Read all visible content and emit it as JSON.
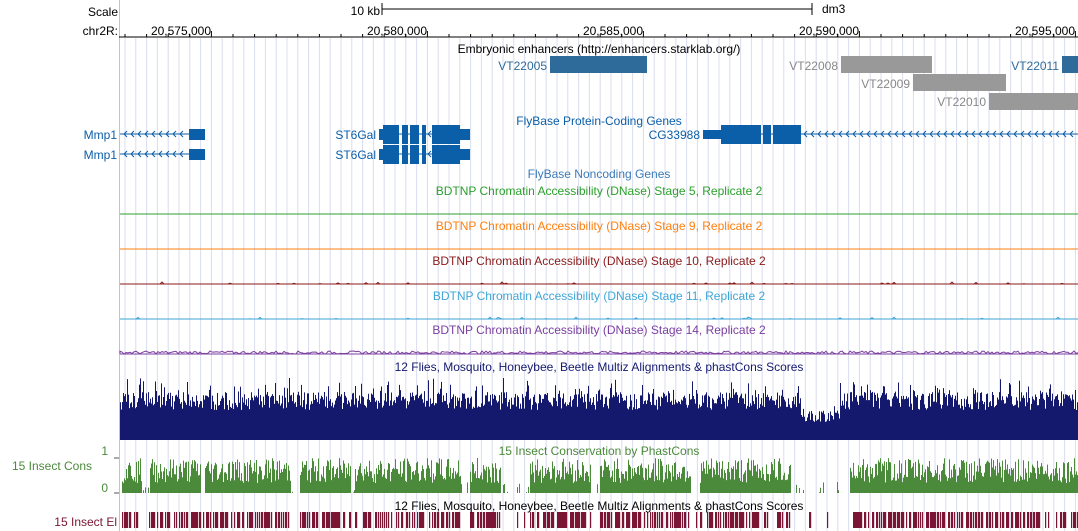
{
  "ruler": {
    "scale_label": "Scale",
    "chrom_label": "chr2R:",
    "scale_bar_text": "10 kb",
    "assembly": "dm3",
    "ticks": [
      "20,575,000",
      "20,580,000",
      "20,585,000",
      "20,590,000",
      "20,595,000"
    ]
  },
  "tracks": {
    "enhancers": {
      "title": "Embryonic enhancers (http://enhancers.starklab.org/)",
      "items": [
        "VT22005",
        "VT22008",
        "VT22009",
        "VT22010",
        "VT22011"
      ]
    },
    "protein_coding": {
      "title": "FlyBase Protein-Coding Genes",
      "genes": [
        "Mmp1",
        "Mmp1",
        "ST6Gal",
        "ST6Gal",
        "CG33988"
      ]
    },
    "noncoding": {
      "title": "FlyBase Noncoding Genes"
    },
    "dnase": [
      {
        "title": "BDTNP Chromatin Accessibility (DNase) Stage 5, Replicate 2",
        "color": "#2ca02c"
      },
      {
        "title": "BDTNP Chromatin Accessibility (DNase) Stage 9, Replicate 2",
        "color": "#ff7f0e"
      },
      {
        "title": "BDTNP Chromatin Accessibility (DNase) Stage 10, Replicate 2",
        "color": "#8b1a1a"
      },
      {
        "title": "BDTNP Chromatin Accessibility (DNase) Stage 11, Replicate 2",
        "color": "#3ea6d6"
      },
      {
        "title": "BDTNP Chromatin Accessibility (DNase) Stage 14, Replicate 2",
        "color": "#7b3fa0"
      }
    ],
    "multiz": {
      "title": "12 Flies, Mosquito, Honeybee, Beetle Multiz Alignments & phastCons Scores"
    },
    "cons15": {
      "title": "15 Insect Conservation by PhastCons",
      "side_label": "15 Insect Cons",
      "y_max": "1",
      "y_min": "0"
    },
    "elements": {
      "title": "12 Flies, Mosquito, Honeybee, Beetle Multiz Alignments & phastCons Scores",
      "side_label": "15 Insect El"
    }
  },
  "colors": {
    "gene_blue": "#0b5ea8",
    "enh_blue": "#2f6b9a",
    "enh_gray": "#999999",
    "navy": "#14196e",
    "cons_green": "#4a8a3a",
    "el_maroon": "#7a1533",
    "grid": "#d8dcf0",
    "left_edge": "#f0b0b0"
  }
}
